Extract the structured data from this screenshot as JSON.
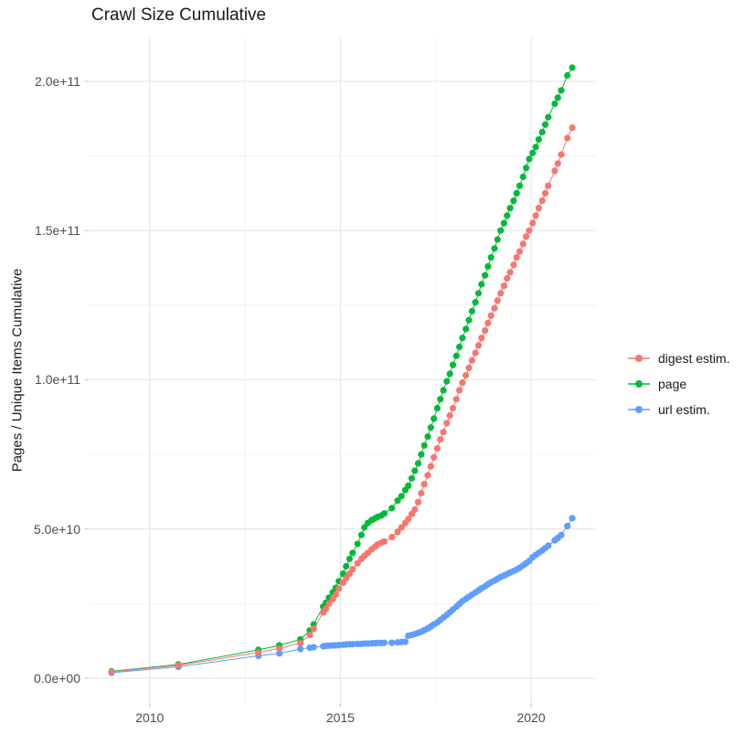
{
  "figure": {
    "title": "Crawl Size Cumulative",
    "y_axis_title": "Pages / Unique Items Cumulative"
  },
  "chart_data": {
    "type": "scatter",
    "subtype": "line-and-point",
    "title": "Crawl Size Cumulative",
    "xlabel": "",
    "ylabel": "Pages / Unique Items Cumulative",
    "grid": true,
    "legend_position": "right",
    "xlim": [
      2008.4,
      2021.7
    ],
    "ylim": [
      -8300000000.0,
      214700000000.0
    ],
    "x_ticks": {
      "values": [
        2010,
        2015,
        2020
      ],
      "labels": [
        "2010",
        "2015",
        "2020"
      ]
    },
    "x_minor": [
      2012.5,
      2017.5
    ],
    "y_ticks": {
      "values": [
        0,
        50000000000.0,
        100000000000.0,
        150000000000.0,
        200000000000.0
      ],
      "labels": [
        "0.0e+00",
        "5.0e+10",
        "1.0e+11",
        "1.5e+11",
        "2.0e+11"
      ]
    },
    "y_minor": [
      25000000000.0,
      75000000000.0,
      125000000000.0,
      175000000000.0
    ],
    "x_unit": "year (crawl date)",
    "y_unit": "pages / unique items cumulative",
    "x": [
      2009.0,
      2010.75,
      2012.85,
      2013.4,
      2013.95,
      2014.2,
      2014.3,
      2014.55,
      2014.62,
      2014.7,
      2014.8,
      2014.88,
      2014.96,
      2015.07,
      2015.15,
      2015.24,
      2015.32,
      2015.45,
      2015.55,
      2015.63,
      2015.72,
      2015.82,
      2015.9,
      2015.97,
      2016.07,
      2016.15,
      2016.35,
      2016.5,
      2016.6,
      2016.7,
      2016.78,
      2016.87,
      2016.95,
      2017.04,
      2017.12,
      2017.2,
      2017.29,
      2017.37,
      2017.45,
      2017.54,
      2017.62,
      2017.7,
      2017.79,
      2017.87,
      2017.95,
      2018.04,
      2018.12,
      2018.2,
      2018.29,
      2018.37,
      2018.45,
      2018.54,
      2018.62,
      2018.7,
      2018.79,
      2018.87,
      2018.95,
      2019.04,
      2019.12,
      2019.2,
      2019.29,
      2019.37,
      2019.45,
      2019.54,
      2019.62,
      2019.7,
      2019.79,
      2019.87,
      2019.95,
      2020.04,
      2020.12,
      2020.2,
      2020.29,
      2020.37,
      2020.45,
      2020.62,
      2020.7,
      2020.79,
      2020.95,
      2021.08
    ],
    "series": [
      {
        "name": "digest estim.",
        "color": "#F8766D",
        "values": [
          2100000000.0,
          4300000000.0,
          8600000000.0,
          10000000000.0,
          11800000000.0,
          14500000000.0,
          16500000000.0,
          22000000000.0,
          23200000000.0,
          25000000000.0,
          26500000000.0,
          28000000000.0,
          30000000000.0,
          32000000000.0,
          33500000000.0,
          35000000000.0,
          36500000000.0,
          38500000000.0,
          40000000000.0,
          41000000000.0,
          42000000000.0,
          43200000000.0,
          44000000000.0,
          44800000000.0,
          45400000000.0,
          45800000000.0,
          47300000000.0,
          49000000000.0,
          50500000000.0,
          52000000000.0,
          53300000000.0,
          55000000000.0,
          56500000000.0,
          59000000000.0,
          62000000000.0,
          65000000000.0,
          68000000000.0,
          71000000000.0,
          74000000000.0,
          77000000000.0,
          80000000000.0,
          82500000000.0,
          85500000000.0,
          88000000000.0,
          90500000000.0,
          93500000000.0,
          96500000000.0,
          99000000000.0,
          101500000000.0,
          104000000000.0,
          106500000000.0,
          109000000000.0,
          111500000000.0,
          114000000000.0,
          116500000000.0,
          119000000000.0,
          121500000000.0,
          124000000000.0,
          126500000000.0,
          129000000000.0,
          131500000000.0,
          134000000000.0,
          136000000000.0,
          138500000000.0,
          141000000000.0,
          143000000000.0,
          145500000000.0,
          148000000000.0,
          150000000000.0,
          152500000000.0,
          155000000000.0,
          157500000000.0,
          160000000000.0,
          162500000000.0,
          165000000000.0,
          170000000000.0,
          172500000000.0,
          175500000000.0,
          181000000000.0,
          184500000000.0
        ]
      },
      {
        "name": "page",
        "color": "#00BA38",
        "values": [
          2300000000.0,
          4600000000.0,
          9500000000.0,
          11000000000.0,
          13000000000.0,
          16000000000.0,
          18000000000.0,
          24000000000.0,
          25300000000.0,
          27000000000.0,
          28800000000.0,
          30300000000.0,
          32500000000.0,
          35000000000.0,
          37500000000.0,
          40000000000.0,
          42000000000.0,
          45000000000.0,
          48000000000.0,
          50500000000.0,
          52000000000.0,
          53000000000.0,
          53500000000.0,
          54000000000.0,
          54500000000.0,
          55200000000.0,
          57000000000.0,
          59500000000.0,
          61000000000.0,
          63000000000.0,
          64500000000.0,
          67000000000.0,
          69500000000.0,
          72000000000.0,
          75000000000.0,
          78000000000.0,
          81000000000.0,
          84000000000.0,
          87000000000.0,
          90500000000.0,
          93500000000.0,
          96500000000.0,
          99500000000.0,
          102000000000.0,
          105000000000.0,
          108000000000.0,
          111000000000.0,
          114000000000.0,
          117000000000.0,
          120000000000.0,
          123000000000.0,
          126000000000.0,
          129000000000.0,
          132000000000.0,
          135000000000.0,
          138000000000.0,
          141000000000.0,
          144000000000.0,
          147000000000.0,
          150000000000.0,
          152500000000.0,
          155000000000.0,
          157500000000.0,
          160000000000.0,
          162500000000.0,
          165000000000.0,
          168000000000.0,
          171000000000.0,
          174000000000.0,
          176000000000.0,
          178000000000.0,
          180500000000.0,
          183000000000.0,
          185500000000.0,
          188000000000.0,
          192500000000.0,
          194500000000.0,
          197000000000.0,
          202000000000.0,
          204600000000.0
        ]
      },
      {
        "name": "url estim.",
        "color": "#619CFF",
        "values": [
          1800000000.0,
          3800000000.0,
          7500000000.0,
          8300000000.0,
          9800000000.0,
          10200000000.0,
          10400000000.0,
          10700000000.0,
          10800000000.0,
          10900000000.0,
          11000000000.0,
          11000000000.0,
          11100000000.0,
          11200000000.0,
          11300000000.0,
          11400000000.0,
          11400000000.0,
          11500000000.0,
          11500000000.0,
          11600000000.0,
          11600000000.0,
          11700000000.0,
          11700000000.0,
          11800000000.0,
          11800000000.0,
          11900000000.0,
          11900000000.0,
          12000000000.0,
          12100000000.0,
          12200000000.0,
          14200000000.0,
          14500000000.0,
          14800000000.0,
          15200000000.0,
          15600000000.0,
          16100000000.0,
          16700000000.0,
          17300000000.0,
          18000000000.0,
          18700000000.0,
          19500000000.0,
          20300000000.0,
          21200000000.0,
          22100000000.0,
          23000000000.0,
          24000000000.0,
          24900000000.0,
          25800000000.0,
          26600000000.0,
          27300000000.0,
          28000000000.0,
          28700000000.0,
          29400000000.0,
          30100000000.0,
          30800000000.0,
          31500000000.0,
          32100000000.0,
          32700000000.0,
          33300000000.0,
          33900000000.0,
          34400000000.0,
          34900000000.0,
          35400000000.0,
          35900000000.0,
          36400000000.0,
          37000000000.0,
          37800000000.0,
          38500000000.0,
          39300000000.0,
          40500000000.0,
          41300000000.0,
          42000000000.0,
          42800000000.0,
          43600000000.0,
          44400000000.0,
          46200000000.0,
          47000000000.0,
          48000000000.0,
          51000000000.0,
          53600000000.0
        ]
      }
    ],
    "style_colors": {
      "grid_major": "#E5E5E5",
      "grid_minor": "#F0F0F0",
      "tick_mark": "#C9C9C9",
      "tick_label": "#4D4D4D",
      "title": "#1A1A1A"
    }
  }
}
